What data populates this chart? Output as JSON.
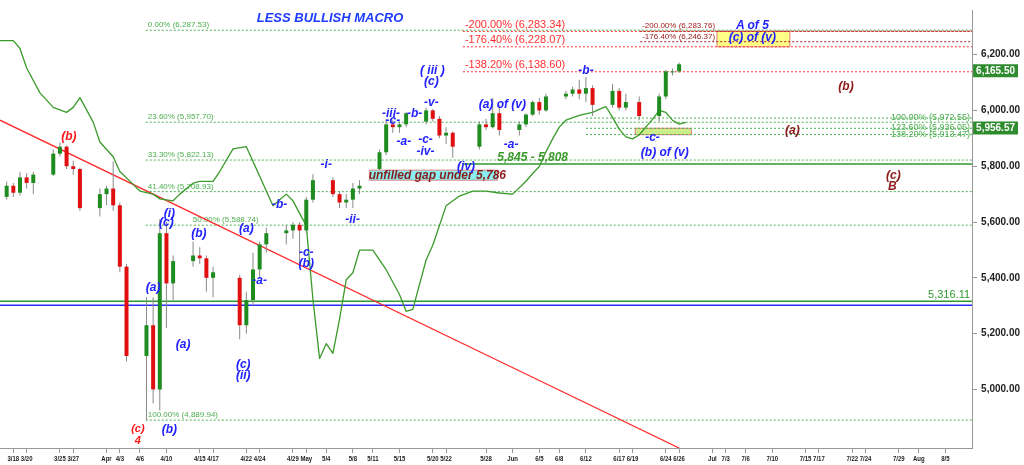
{
  "chart_data": {
    "type": "candlestick",
    "title": "LESS BULLISH MACRO",
    "x": [
      "--03-17",
      "--03-18",
      "--03-19",
      "--03-20",
      "--03-21",
      "--03-24",
      "--03-25",
      "--03-26",
      "--03-27",
      "--03-28",
      "--03-31",
      "--04-01",
      "--04-02",
      "--04-03",
      "--04-04",
      "--04-07",
      "--04-08",
      "--04-09",
      "--04-10",
      "--04-11",
      "--04-14",
      "--04-15",
      "--04-16",
      "--04-17",
      "--04-21",
      "--04-22",
      "--04-23",
      "--04-24",
      "--04-25",
      "--04-28",
      "--04-29",
      "--04-30",
      "--05-01",
      "--05-02",
      "--05-05",
      "--05-06",
      "--05-07",
      "--05-08",
      "--05-09",
      "--05-12",
      "--05-13",
      "--05-14",
      "--05-15",
      "--05-16",
      "--05-19",
      "--05-20",
      "--05-21",
      "--05-22",
      "--05-23",
      "--05-27",
      "--05-28",
      "--05-29",
      "--05-30",
      "--06-02",
      "--06-03",
      "--06-04",
      "--06-05",
      "--06-06",
      "--06-09",
      "--06-10",
      "--06-11",
      "--06-12",
      "--06-13",
      "--06-16",
      "--06-17",
      "--06-18",
      "--06-20",
      "--06-23",
      "--06-24",
      "--06-25",
      "--06-26"
    ],
    "ohlc": [
      [
        5690,
        5745,
        5680,
        5730
      ],
      [
        5730,
        5740,
        5690,
        5705
      ],
      [
        5705,
        5780,
        5695,
        5760
      ],
      [
        5760,
        5775,
        5720,
        5740
      ],
      [
        5740,
        5780,
        5700,
        5770
      ],
      [
        5770,
        5860,
        5765,
        5845
      ],
      [
        5845,
        5885,
        5835,
        5870
      ],
      [
        5870,
        5875,
        5790,
        5800
      ],
      [
        5800,
        5820,
        5770,
        5790
      ],
      [
        5790,
        5795,
        5640,
        5650
      ],
      [
        5650,
        5720,
        5620,
        5700
      ],
      [
        5700,
        5730,
        5660,
        5720
      ],
      [
        5720,
        5817,
        5640,
        5660
      ],
      [
        5660,
        5670,
        5420,
        5440
      ],
      [
        5440,
        5450,
        5100,
        5120
      ],
      [
        5120,
        5330,
        4890,
        5230
      ],
      [
        5230,
        5330,
        4950,
        5000
      ],
      [
        5000,
        5610,
        4925,
        5560
      ],
      [
        5560,
        5600,
        5220,
        5380
      ],
      [
        5380,
        5480,
        5320,
        5460
      ],
      [
        5460,
        5530,
        5440,
        5480
      ],
      [
        5480,
        5510,
        5450,
        5470
      ],
      [
        5470,
        5480,
        5350,
        5400
      ],
      [
        5400,
        5440,
        5330,
        5420
      ],
      [
        5400,
        5410,
        5180,
        5230
      ],
      [
        5230,
        5350,
        5200,
        5320
      ],
      [
        5320,
        5490,
        5300,
        5430
      ],
      [
        5430,
        5530,
        5400,
        5520
      ],
      [
        5520,
        5580,
        5490,
        5560
      ],
      [
        5560,
        5590,
        5520,
        5570
      ],
      [
        5570,
        5600,
        5540,
        5590
      ],
      [
        5590,
        5600,
        5450,
        5570
      ],
      [
        5570,
        5690,
        5560,
        5680
      ],
      [
        5680,
        5771,
        5670,
        5750
      ],
      [
        5750,
        5760,
        5690,
        5700
      ],
      [
        5700,
        5710,
        5650,
        5670
      ],
      [
        5670,
        5700,
        5650,
        5680
      ],
      [
        5680,
        5740,
        5650,
        5720
      ],
      [
        5720,
        5750,
        5700,
        5730
      ],
      [
        5790,
        5860,
        5786,
        5850
      ],
      [
        5850,
        5970,
        5840,
        5950
      ],
      [
        5950,
        5965,
        5920,
        5940
      ],
      [
        5940,
        5960,
        5920,
        5950
      ],
      [
        5950,
        5995,
        5940,
        5990
      ],
      [
        5960,
        6010,
        5950,
        6000
      ],
      [
        6000,
        6005,
        5960,
        5970
      ],
      [
        5970,
        5980,
        5900,
        5910
      ],
      [
        5910,
        5940,
        5880,
        5920
      ],
      [
        5920,
        5925,
        5830,
        5870
      ],
      [
        5870,
        5960,
        5860,
        5950
      ],
      [
        5950,
        5970,
        5930,
        5940
      ],
      [
        5940,
        6045,
        5935,
        5990
      ],
      [
        5990,
        6020,
        5910,
        5930
      ],
      [
        5930,
        5960,
        5910,
        5950
      ],
      [
        5950,
        5990,
        5940,
        5985
      ],
      [
        5985,
        6035,
        5980,
        6030
      ],
      [
        6030,
        6045,
        5985,
        6000
      ],
      [
        6000,
        6060,
        5995,
        6050
      ],
      [
        6050,
        6070,
        6040,
        6060
      ],
      [
        6060,
        6085,
        6050,
        6075
      ],
      [
        6075,
        6110,
        6040,
        6060
      ],
      [
        6060,
        6120,
        6030,
        6080
      ],
      [
        6080,
        6090,
        5980,
        6020
      ],
      [
        6020,
        6095,
        6010,
        6070
      ],
      [
        6070,
        6080,
        6000,
        6010
      ],
      [
        6010,
        6060,
        6000,
        6030
      ],
      [
        6030,
        6050,
        5965,
        5980
      ],
      [
        5980,
        6060,
        5960,
        6050
      ],
      [
        6050,
        6145,
        6040,
        6140
      ],
      [
        6140,
        6150,
        6125,
        6140
      ],
      [
        6140,
        6172,
        6135,
        6165.5
      ]
    ],
    "series": [
      {
        "type": "line",
        "color": "#3a9a2a",
        "x": [
          "--03-16",
          "--03-18",
          "--03-19",
          "--03-20",
          "--03-22",
          "--03-24",
          "--03-26",
          "--03-27",
          "--03-28",
          "--03-30",
          "--03-31",
          "--04-02",
          "--04-03",
          "--04-05",
          "--04-06",
          "--04-08",
          "--04-09",
          "--04-11",
          "--04-12",
          "--04-14",
          "--04-15",
          "--04-17",
          "--04-18",
          "--04-20",
          "--04-22",
          "--04-23",
          "--04-25",
          "--04-26",
          "--04-28",
          "--04-29",
          "--05-01",
          "--05-02",
          "--05-03",
          "--05-04",
          "--05-05",
          "--05-06",
          "--05-07",
          "--05-08",
          "--05-09",
          "--05-11",
          "--05-13",
          "--05-15",
          "--05-16",
          "--05-17",
          "--05-19",
          "--05-20",
          "--05-22",
          "--05-24",
          "--05-26",
          "--05-28",
          "--05-30",
          "--06-01",
          "--06-03",
          "--06-04",
          "--06-05",
          "--06-06",
          "--06-07",
          "--06-08",
          "--06-09",
          "--06-11",
          "--06-13",
          "--06-14",
          "--06-15",
          "--06-16",
          "--06-17",
          "--06-18",
          "--06-19",
          "--06-20",
          "--06-21",
          "--06-22",
          "--06-23",
          "--06-24",
          "--06-25",
          "--06-26",
          "--06-27"
        ],
        "values": [
          6250,
          6250,
          6222,
          6152,
          6063,
          6011,
          5993,
          6011,
          6046,
          5958,
          5887,
          5834,
          5781,
          5735,
          5711,
          5700,
          5683,
          5676,
          5700,
          5739,
          5746,
          5746,
          5781,
          5862,
          5870,
          5817,
          5711,
          5658,
          5700,
          5676,
          5587,
          5323,
          5111,
          5164,
          5129,
          5252,
          5393,
          5418,
          5499,
          5499,
          5429,
          5340,
          5280,
          5287,
          5464,
          5517,
          5658,
          5693,
          5711,
          5711,
          5704,
          5700,
          5746,
          5774,
          5799,
          5852,
          5898,
          5940,
          5965,
          5982,
          5993,
          6004,
          6014,
          5975,
          5933,
          5905,
          5898,
          5912,
          5940,
          5968,
          6000,
          5993,
          5965,
          5951,
          5957
        ]
      },
      {
        "type": "line",
        "color": "#ff2a2a",
        "x": [
          "--03-16",
          "--06-26"
        ],
        "values": [
          5965,
          4790
        ]
      }
    ],
    "xlim": [
      "--03-16",
      "--08-09"
    ],
    "xticks": [
      {
        "value": "--03-18",
        "label": "3/18"
      },
      {
        "value": "--03-20",
        "label": "3/20"
      },
      {
        "value": "--03-25",
        "label": "3/25"
      },
      {
        "value": "--03-27",
        "label": "3/27"
      },
      {
        "value": "--04-01",
        "label": "Apr"
      },
      {
        "value": "--04-03",
        "label": "4/3"
      },
      {
        "value": "--04-06",
        "label": "4/6"
      },
      {
        "value": "--04-10",
        "label": "4/10"
      },
      {
        "value": "--04-15",
        "label": "4/15"
      },
      {
        "value": "--04-17",
        "label": "4/17"
      },
      {
        "value": "--04-22",
        "label": "4/22"
      },
      {
        "value": "--04-24",
        "label": "4/24"
      },
      {
        "value": "--04-29",
        "label": "4/29"
      },
      {
        "value": "--05-01",
        "label": "May"
      },
      {
        "value": "--05-04",
        "label": "5/4"
      },
      {
        "value": "--05-08",
        "label": "5/8"
      },
      {
        "value": "--05-11",
        "label": "5/11"
      },
      {
        "value": "--05-15",
        "label": "5/15"
      },
      {
        "value": "--05-20",
        "label": "5/20"
      },
      {
        "value": "--05-22",
        "label": "5/22"
      },
      {
        "value": "--05-28",
        "label": "5/28"
      },
      {
        "value": "--06-01",
        "label": "Jun"
      },
      {
        "value": "--06-05",
        "label": "6/5"
      },
      {
        "value": "--06-08",
        "label": "6/8"
      },
      {
        "value": "--06-12",
        "label": "6/12"
      },
      {
        "value": "--06-17",
        "label": "6/17"
      },
      {
        "value": "--06-19",
        "label": "6/19"
      },
      {
        "value": "--06-24",
        "label": "6/24"
      },
      {
        "value": "--06-26",
        "label": "6/26"
      },
      {
        "value": "--07-01",
        "label": "Jul"
      },
      {
        "value": "--07-03",
        "label": "7/3"
      },
      {
        "value": "--07-06",
        "label": "7/6"
      },
      {
        "value": "--07-10",
        "label": "7/10"
      },
      {
        "value": "--07-15",
        "label": "7/15"
      },
      {
        "value": "--07-17",
        "label": "7/17"
      },
      {
        "value": "--07-22",
        "label": "7/22"
      },
      {
        "value": "--07-24",
        "label": "7/24"
      },
      {
        "value": "--07-29",
        "label": "7/29"
      },
      {
        "value": "--08-01",
        "label": "Aug"
      },
      {
        "value": "--08-05",
        "label": "8/5"
      }
    ],
    "ylim": [
      4790,
      6360
    ],
    "yticks": [
      {
        "value": 5000,
        "label": "5,000.00"
      },
      {
        "value": 5200,
        "label": "5,200.00"
      },
      {
        "value": 5400,
        "label": "5,400.00"
      },
      {
        "value": 5600,
        "label": "5,600.00"
      },
      {
        "value": 5800,
        "label": "5,800.00"
      },
      {
        "value": 6000,
        "label": "6,000.00"
      },
      {
        "value": 6200,
        "label": "6,200.00"
      }
    ],
    "grid": false,
    "legend": false,
    "ref_lines": [
      {
        "axis": "y",
        "value": 6287.53,
        "label": "0.00% (6,287.53)",
        "color": "#4caf50",
        "line_style": "dotted"
      },
      {
        "axis": "y",
        "value": 5957.7,
        "label": "23.60% (5,957.70)",
        "color": "#4caf50",
        "line_style": "dotted"
      },
      {
        "axis": "y",
        "value": 5822.13,
        "label": "33.30% (5,822.13)",
        "color": "#4caf50",
        "line_style": "dotted"
      },
      {
        "axis": "y",
        "value": 5708.93,
        "label": "41.40% (5,708.93)",
        "color": "#4caf50",
        "line_style": "dotted"
      },
      {
        "axis": "y",
        "value": 5588.74,
        "label": "50.00% (5,588.74)",
        "color": "#4caf50",
        "line_style": "dotted"
      },
      {
        "axis": "y",
        "value": 4889.94,
        "label": "100.00% (4,889.94)",
        "color": "#4caf50",
        "line_style": "dotted"
      },
      {
        "axis": "y",
        "value": 6283.34,
        "label": "-200.00% (6,283.34)",
        "color": "#ff3030",
        "line_style": "dotted"
      },
      {
        "axis": "y",
        "value": 6228.07,
        "label": "-176.40% (6,228.07)",
        "color": "#ff3030",
        "line_style": "dotted"
      },
      {
        "axis": "y",
        "value": 6138.6,
        "label": "-138.20% (6,138.60)",
        "color": "#ff3030",
        "line_style": "dotted"
      },
      {
        "axis": "y",
        "value": 6283.76,
        "label": "-200.00% (6,283.76)",
        "color": "#a02020",
        "line_style": "dotted"
      },
      {
        "axis": "y",
        "value": 6246.37,
        "label": "-176.40% (6,246.37)",
        "color": "#a02020",
        "line_style": "dotted"
      },
      {
        "axis": "y",
        "value": 5972.55,
        "label": "100.00% (5,972.55)",
        "color": "#4caf50",
        "line_style": "dotted"
      },
      {
        "axis": "y",
        "value": 5936.05,
        "label": "123.60% (5,936.05)",
        "color": "#4caf50",
        "line_style": "dotted"
      },
      {
        "axis": "y",
        "value": 5913.47,
        "label": "138.20% (5,913.47)",
        "color": "#4caf50",
        "line_style": "dotted"
      },
      {
        "axis": "y",
        "value": 5316.11,
        "label": "5,316.11",
        "color": "#2e9a2e",
        "line_style": "solid"
      },
      {
        "axis": "y",
        "value": 5302,
        "color": "#2a2aff",
        "line_style": "solid"
      },
      {
        "axis": "y",
        "value": 5808,
        "color": "#2e9a2e",
        "line_style": "solid"
      }
    ],
    "bands": [
      {
        "axis": "y",
        "from": 6228,
        "to": 6283,
        "color": "#ffff88"
      },
      {
        "axis": "y",
        "from": 5913,
        "to": 5936,
        "color": "#ccee88"
      },
      {
        "axis": "y",
        "from": 5750,
        "to": 5786,
        "label": "unfilled gap under 5,786",
        "color": "#88f0f0"
      }
    ],
    "annotations": [
      "(b)",
      "(c)",
      "4",
      {
        "text": "(a)",
        "x": "--04-08",
        "y": 5365
      },
      "(b)",
      "(i)",
      {
        "text": "(c)",
        "x": "--04-10",
        "y": 5598
      },
      "(a)",
      "(b)",
      "(c)",
      "(ii)",
      {
        "text": "(a)",
        "x": "--04-22",
        "y": 5577
      },
      {
        "text": "-a-",
        "x": "--04-24",
        "y": 5390
      },
      {
        "text": "-b-",
        "x": "--04-27",
        "y": 5661
      },
      {
        "text": "-c-",
        "x": "--05-01",
        "y": 5489
      },
      {
        "text": "(b)",
        "x": "--05-01",
        "y": 5450
      },
      {
        "text": "-i-",
        "x": "--05-04",
        "y": 5806
      },
      "-ii-",
      "-iii-",
      {
        "text": "-c-",
        "x": "--05-14",
        "y": 5965
      },
      "-a-",
      "-b-",
      "-c-",
      "-iv-",
      "( iii )",
      "(c)",
      "-v-",
      {
        "text": "(iv)",
        "x": "--05-25",
        "y": 5799
      },
      "(a) of (v)",
      "-a-",
      "-b-",
      {
        "text": "-c-",
        "x": "--06-22",
        "y": 5901
      },
      "(b) of (v)",
      {
        "text": "A of 5",
        "x": "--07-07",
        "y": 6303
      },
      {
        "text": "(c) of (v)",
        "x": "--07-07",
        "y": 6261
      },
      "(b)",
      {
        "text": "(a)",
        "x": "--07-13",
        "y": 5929
      },
      "(c)",
      "B",
      {
        "text": "5,845 - 5,808",
        "x": "--06-04",
        "y": 5831
      },
      "6,165.50",
      "5,956.57"
    ]
  }
}
